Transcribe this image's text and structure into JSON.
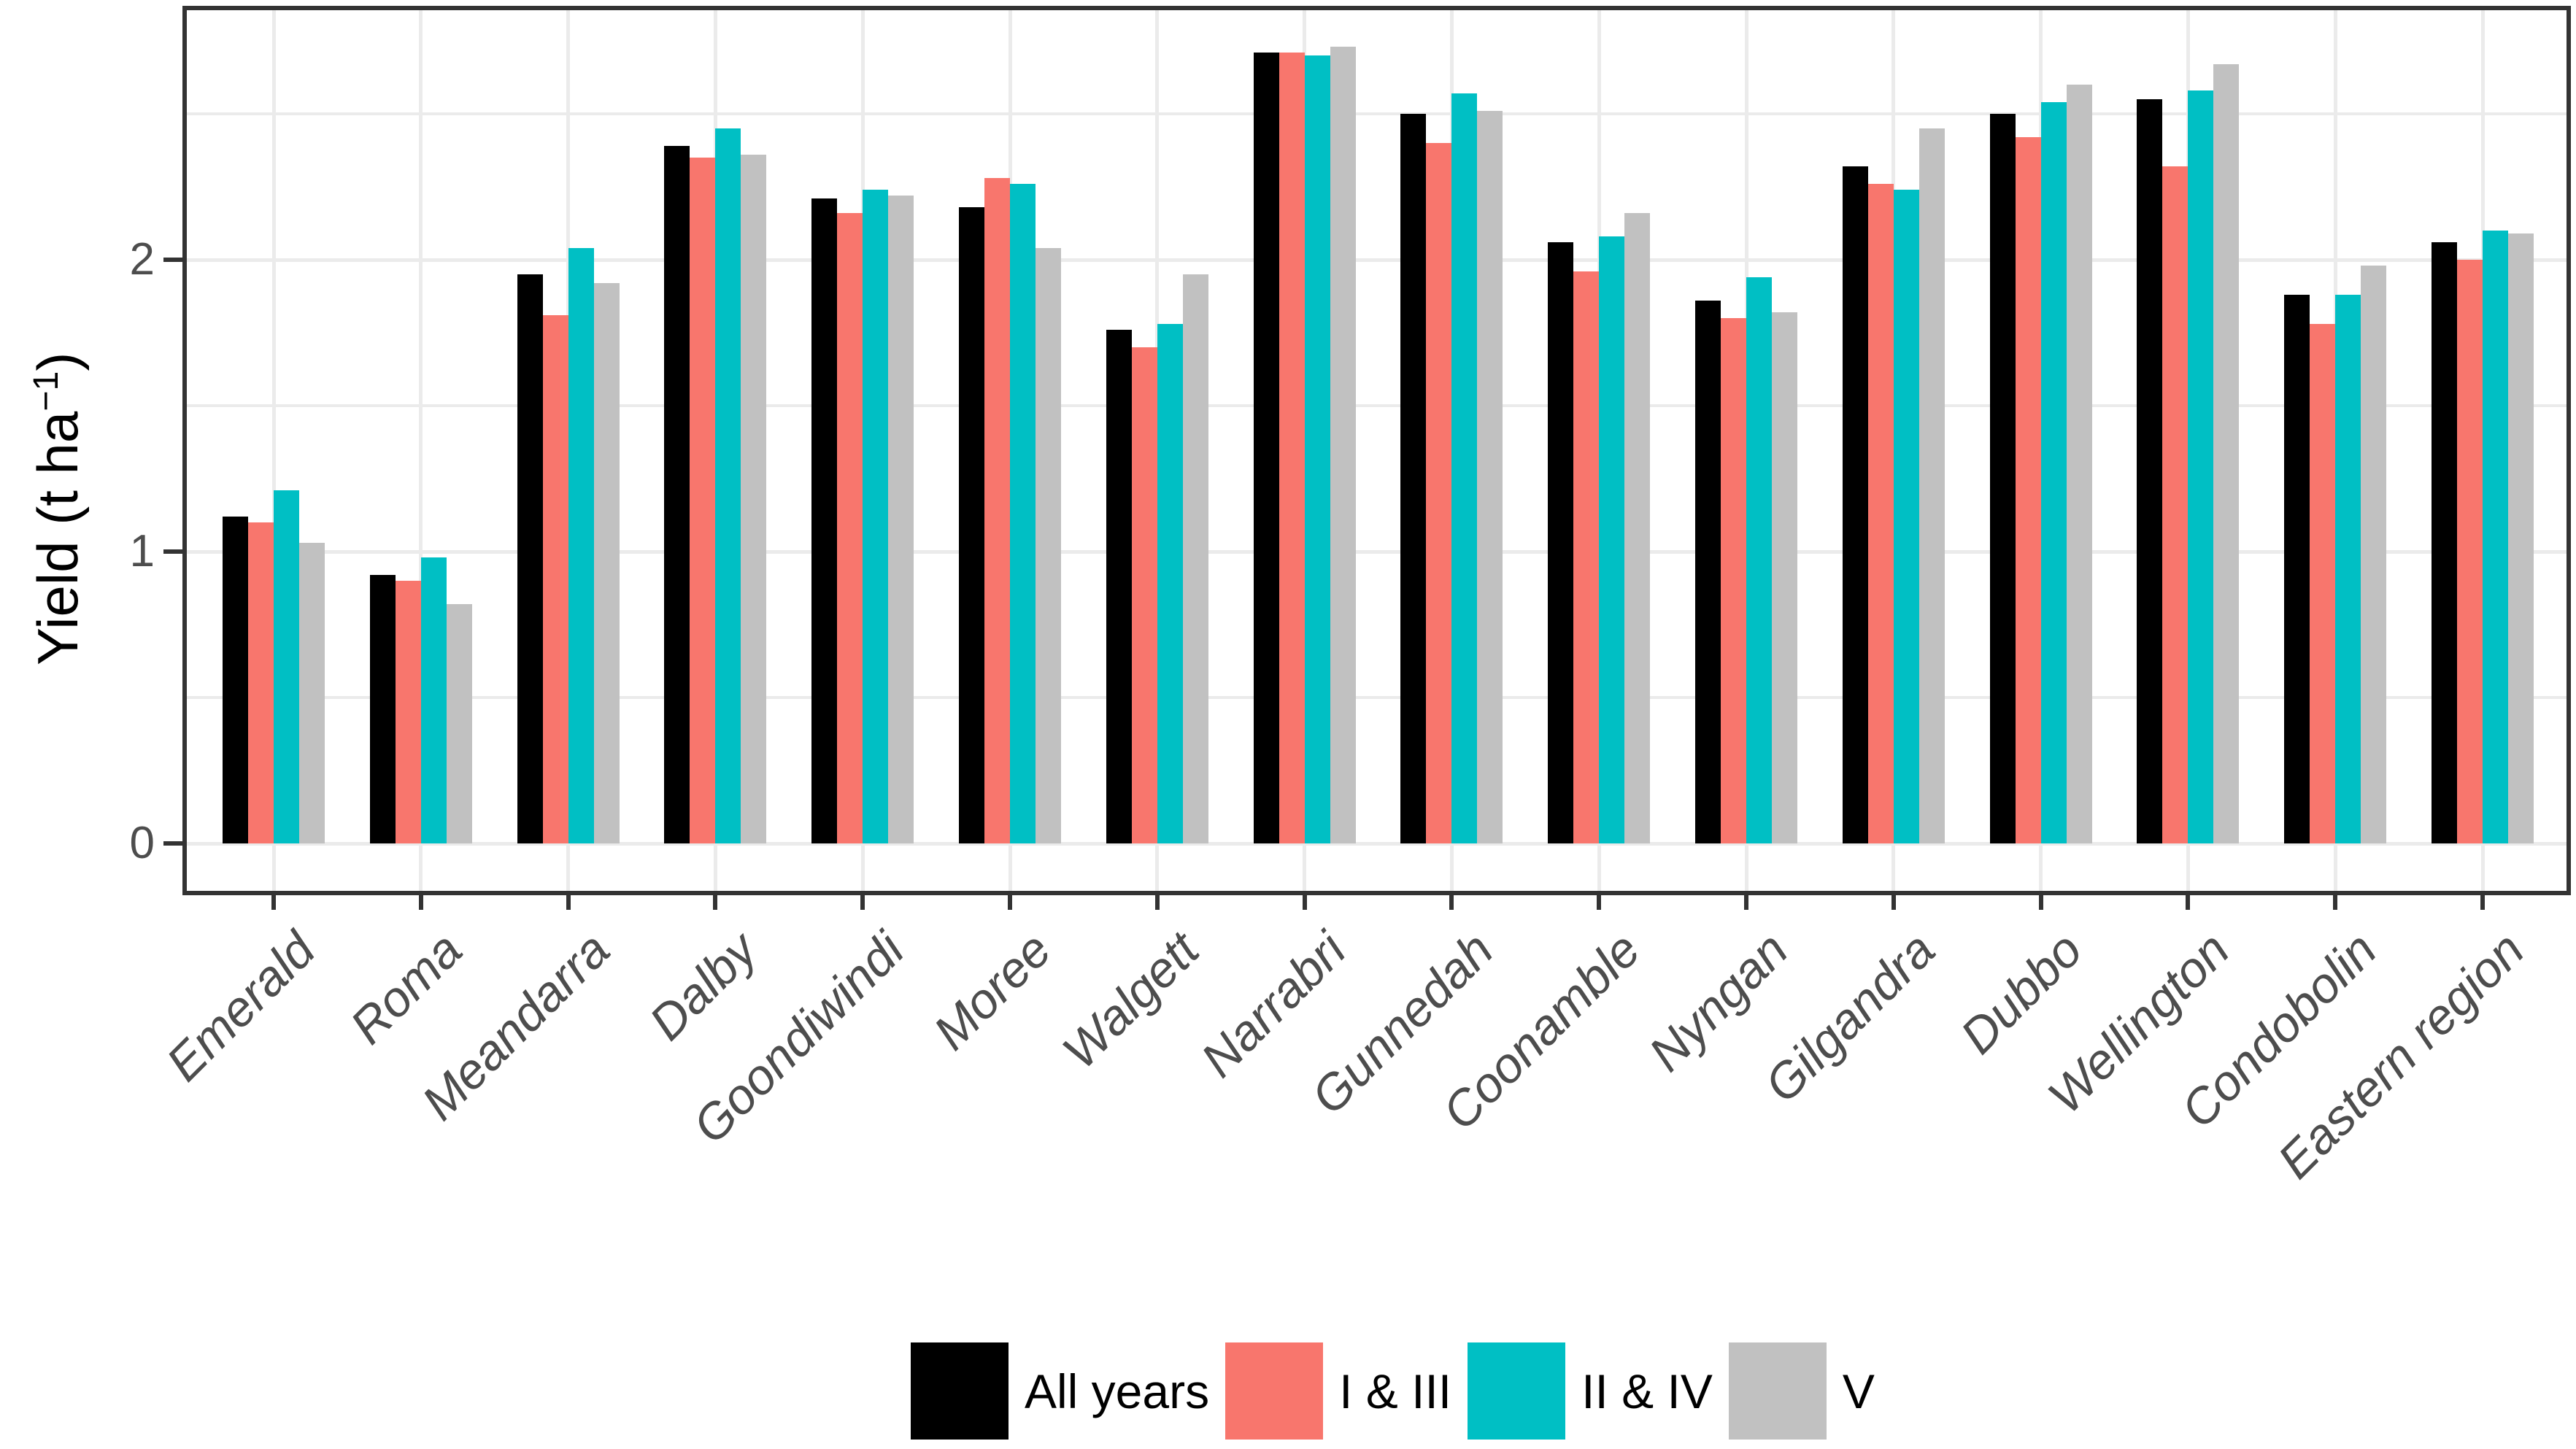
{
  "y_axis": {
    "label_prefix": "Yield (t ha",
    "label_sup": "−1",
    "label_suffix": ")",
    "tick_labels": [
      "0",
      "1",
      "2"
    ]
  },
  "legend": {
    "items": [
      "All years",
      "I & III",
      "II & IV",
      "V"
    ]
  },
  "colors": {
    "all_years": "#000000",
    "i_iii": "#F8766D",
    "ii_iv": "#00BFC4",
    "v": "#C1C1C1",
    "grid": "#EBEBEB",
    "axis": "#333333",
    "axis_text": "#4D4D4D"
  },
  "chart_data": {
    "type": "bar",
    "title": "",
    "xlabel": "",
    "ylabel": "Yield (t ha−1)",
    "ylim": [
      0,
      2.86
    ],
    "y_major_ticks": [
      0,
      1,
      2
    ],
    "y_minor_gridlines": [
      0.5,
      1.5,
      2.5
    ],
    "grid": true,
    "legend_position": "bottom",
    "categories": [
      "Emerald",
      "Roma",
      "Meandarra",
      "Dalby",
      "Goondiwindi",
      "Moree",
      "Walgett",
      "Narrabri",
      "Gunnedah",
      "Coonamble",
      "Nyngan",
      "Gilgandra",
      "Dubbo",
      "Wellington",
      "Condobolin",
      "Eastern region"
    ],
    "series": [
      {
        "name": "All years",
        "color": "#000000",
        "values": [
          1.12,
          0.92,
          1.95,
          2.39,
          2.21,
          2.18,
          1.76,
          2.71,
          2.5,
          2.06,
          1.86,
          2.32,
          2.5,
          2.55,
          1.88,
          2.06
        ]
      },
      {
        "name": "I & III",
        "color": "#F8766D",
        "values": [
          1.1,
          0.9,
          1.81,
          2.35,
          2.16,
          2.28,
          1.7,
          2.71,
          2.4,
          1.96,
          1.8,
          2.26,
          2.42,
          2.32,
          1.78,
          2.0
        ]
      },
      {
        "name": "II & IV",
        "color": "#00BFC4",
        "values": [
          1.21,
          0.98,
          2.04,
          2.45,
          2.24,
          2.26,
          1.78,
          2.7,
          2.57,
          2.08,
          1.94,
          2.24,
          2.54,
          2.58,
          1.88,
          2.1
        ]
      },
      {
        "name": "V",
        "color": "#C1C1C1",
        "values": [
          1.03,
          0.82,
          1.92,
          2.36,
          2.22,
          2.04,
          1.95,
          2.73,
          2.51,
          2.16,
          1.82,
          2.45,
          2.6,
          2.67,
          1.98,
          2.09
        ]
      }
    ]
  }
}
